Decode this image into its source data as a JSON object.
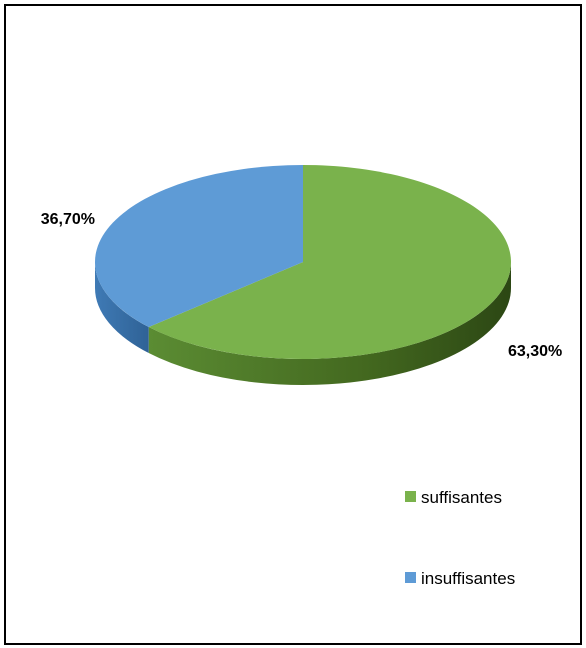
{
  "chart_data": {
    "type": "pie",
    "categories": [
      "suffisantes",
      "insuffisantes"
    ],
    "values": [
      63.3,
      36.7
    ],
    "value_labels": [
      "63,30%",
      "36,70%"
    ],
    "colors": [
      "#7ab24c",
      "#5e9bd6"
    ],
    "legend": "right"
  }
}
